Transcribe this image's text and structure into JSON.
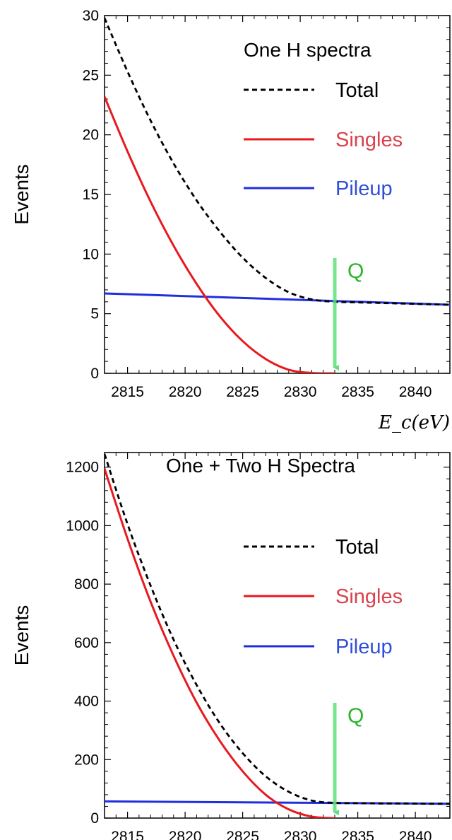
{
  "chart_data": [
    {
      "type": "line",
      "title": "One H spectra",
      "xlabel": "E_c(eV)",
      "ylabel": "Events",
      "xlim": [
        2813,
        2843
      ],
      "ylim": [
        0,
        30
      ],
      "xticks": [
        "2815",
        "2820",
        "2825",
        "2830",
        "2835",
        "2840"
      ],
      "yticks": [
        "0",
        "5",
        "10",
        "15",
        "20",
        "25",
        "30"
      ],
      "legend_position": "top-right",
      "annotation": {
        "label": "Q",
        "x": 2833,
        "color": "#5fe07a"
      },
      "series": [
        {
          "name": "Total",
          "color": "#000000",
          "style": "dashed",
          "x": [
            2813,
            2815,
            2817,
            2819,
            2821,
            2823,
            2825,
            2827,
            2829,
            2831,
            2833,
            2835,
            2837,
            2839,
            2841,
            2843
          ],
          "y": [
            29.8,
            25.3,
            21.2,
            17.6,
            14.5,
            11.9,
            9.7,
            8.0,
            6.8,
            6.2,
            6.0,
            5.95,
            5.9,
            5.85,
            5.8,
            5.75
          ]
        },
        {
          "name": "Singles",
          "color": "#e8191e",
          "style": "solid",
          "x": [
            2813,
            2815,
            2817,
            2819,
            2821,
            2823,
            2825,
            2827,
            2829,
            2831,
            2833
          ],
          "y": [
            23.2,
            18.6,
            14.4,
            10.7,
            7.5,
            4.8,
            2.7,
            1.2,
            0.3,
            0.03,
            0
          ]
        },
        {
          "name": "Pileup",
          "color": "#1f2fe0",
          "style": "solid",
          "x": [
            2813,
            2843
          ],
          "y": [
            6.7,
            5.75
          ]
        }
      ]
    },
    {
      "type": "line",
      "title": "One + Two H Spectra",
      "xlabel": "",
      "ylabel": "Events",
      "xlim": [
        2813,
        2843
      ],
      "ylim": [
        0,
        1250
      ],
      "xticks": [
        "2815",
        "2820",
        "2825",
        "2830",
        "2835",
        "2840"
      ],
      "yticks": [
        "0",
        "200",
        "400",
        "600",
        "800",
        "1000",
        "1200"
      ],
      "legend_position": "right",
      "annotation": {
        "label": "Q",
        "x": 2833,
        "color": "#5fe07a"
      },
      "series": [
        {
          "name": "Total",
          "color": "#000000",
          "style": "dashed",
          "x": [
            2813,
            2815,
            2817,
            2819,
            2821,
            2823,
            2825,
            2827,
            2829,
            2831,
            2833,
            2835,
            2837,
            2839,
            2841,
            2843
          ],
          "y": [
            1245,
            1005,
            795,
            610,
            455,
            325,
            222,
            143,
            90,
            60,
            52,
            51,
            50,
            50,
            49,
            49
          ]
        },
        {
          "name": "Singles",
          "color": "#e8191e",
          "style": "solid",
          "x": [
            2813,
            2815,
            2817,
            2819,
            2821,
            2823,
            2825,
            2827,
            2829,
            2831,
            2833
          ],
          "y": [
            1195,
            955,
            740,
            555,
            395,
            265,
            160,
            80,
            30,
            5,
            0
          ]
        },
        {
          "name": "Pileup",
          "color": "#1f2fe0",
          "style": "solid",
          "x": [
            2813,
            2843
          ],
          "y": [
            57,
            49
          ]
        }
      ]
    }
  ]
}
